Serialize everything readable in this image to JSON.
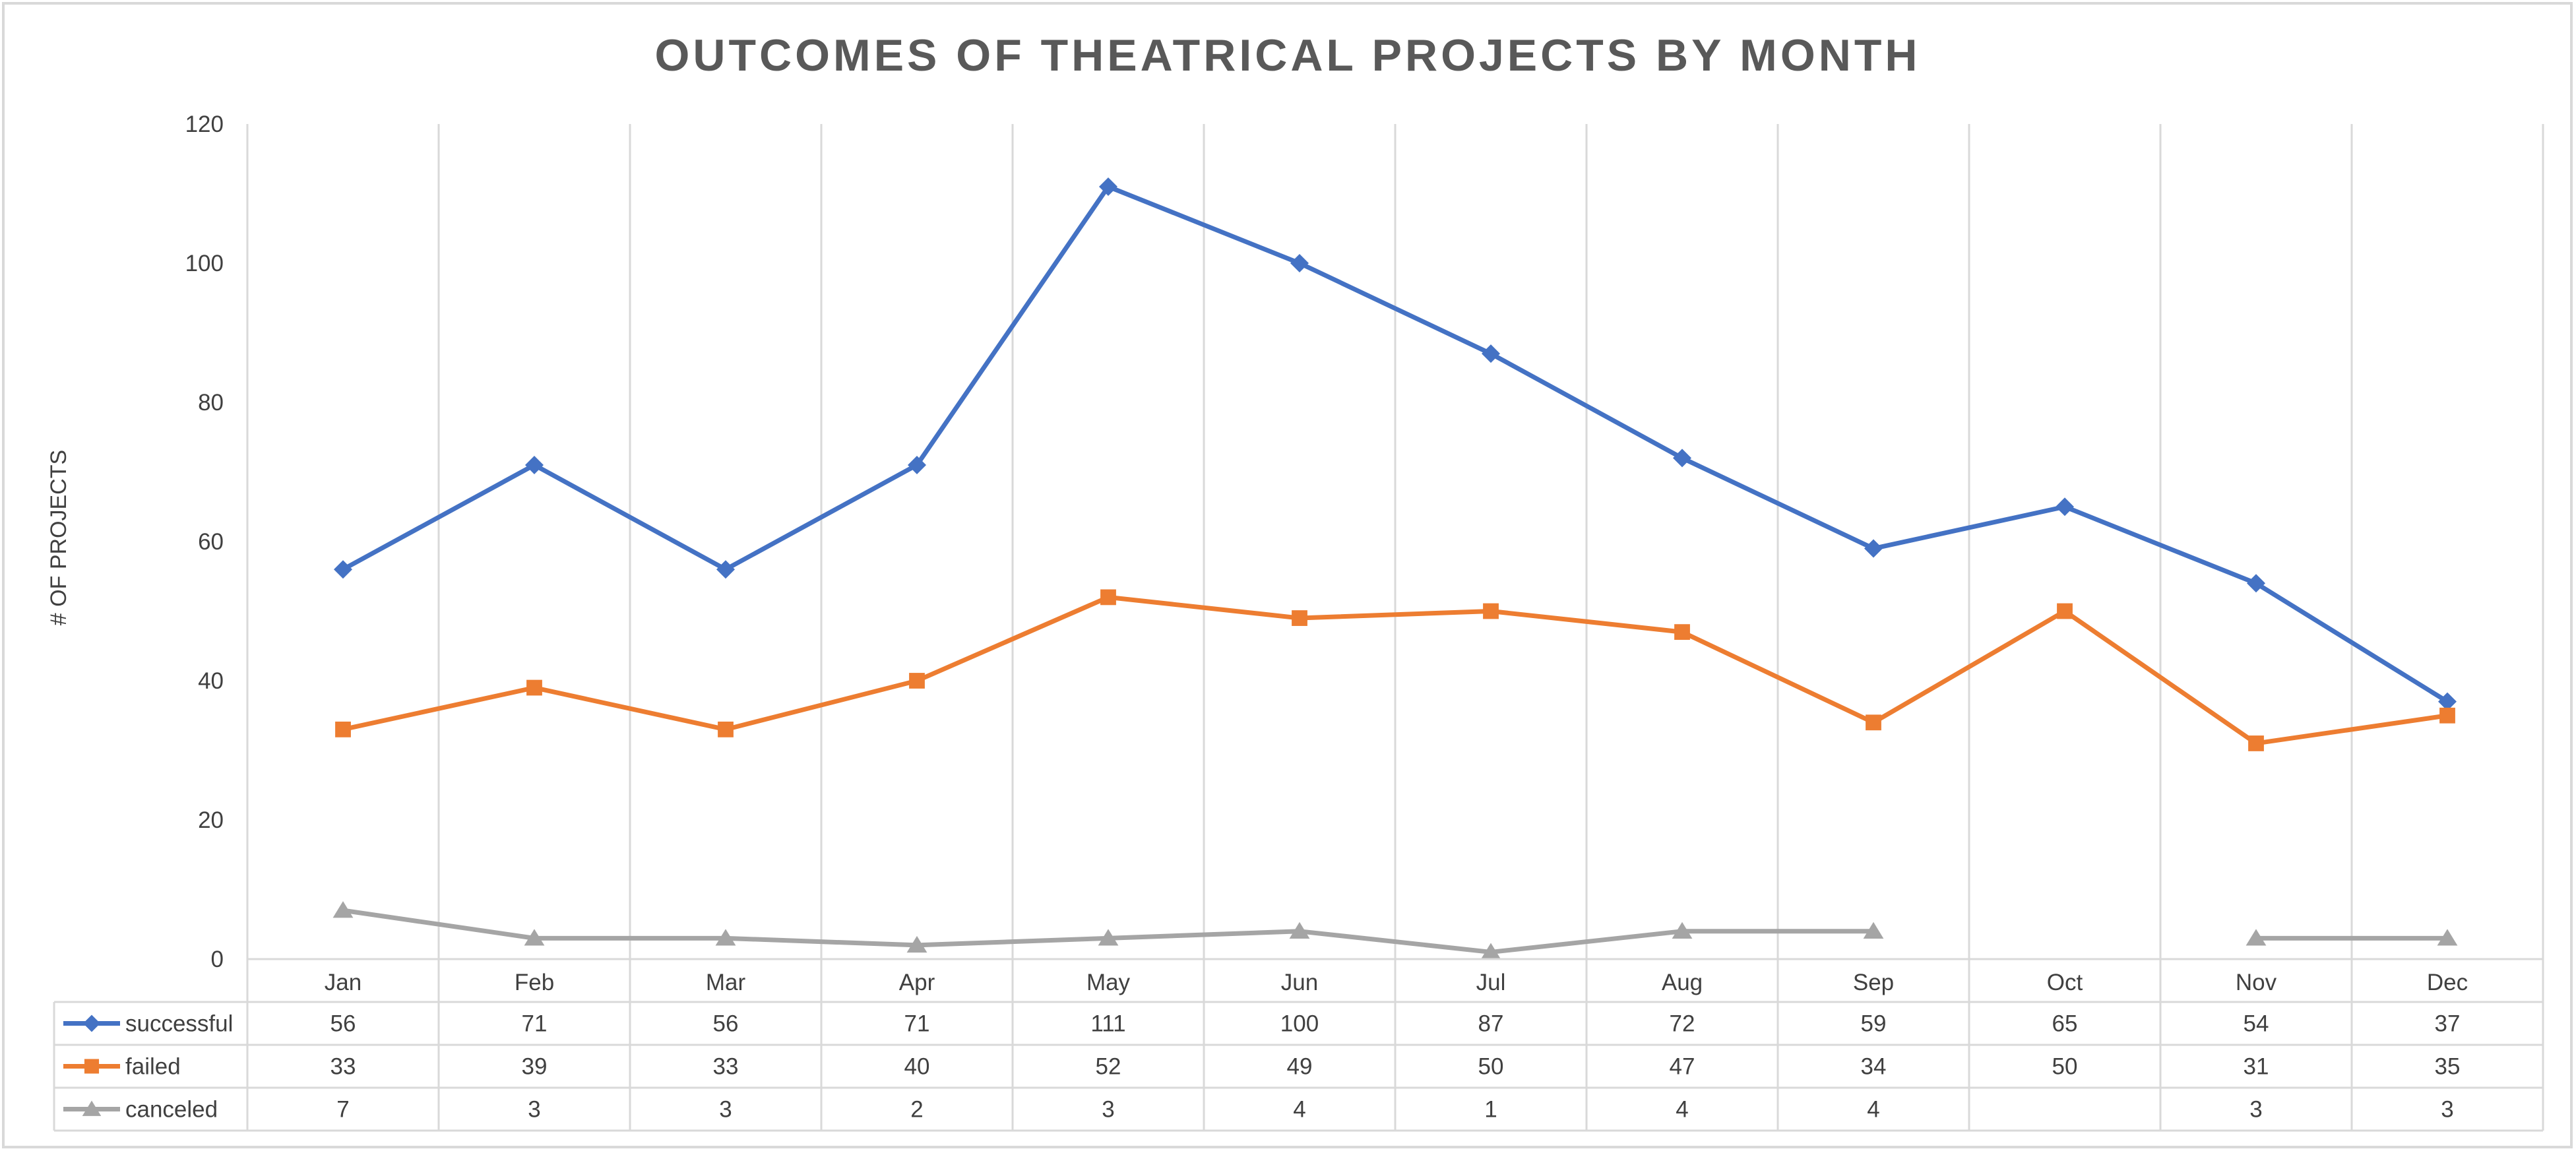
{
  "chart_data": {
    "type": "line",
    "title": "OUTCOMES OF THEATRICAL PROJECTS BY MONTH",
    "xlabel": "",
    "ylabel": "# OF PROJECTS",
    "ylim": [
      0,
      120
    ],
    "yticks": [
      0,
      20,
      40,
      60,
      80,
      100,
      120
    ],
    "categories": [
      "Jan",
      "Feb",
      "Mar",
      "Apr",
      "May",
      "Jun",
      "Jul",
      "Aug",
      "Sep",
      "Oct",
      "Nov",
      "Dec"
    ],
    "grid": "vertical",
    "legend": "data-table",
    "series": [
      {
        "name": "successful",
        "color": "#4472C4",
        "marker": "diamond",
        "values": [
          56,
          71,
          56,
          71,
          111,
          100,
          87,
          72,
          59,
          65,
          54,
          37
        ]
      },
      {
        "name": "failed",
        "color": "#ED7D31",
        "marker": "square",
        "values": [
          33,
          39,
          33,
          40,
          52,
          49,
          50,
          47,
          34,
          50,
          31,
          35
        ]
      },
      {
        "name": "canceled",
        "color": "#A5A5A5",
        "marker": "triangle",
        "values": [
          7,
          3,
          3,
          2,
          3,
          4,
          1,
          4,
          4,
          null,
          3,
          3
        ]
      }
    ]
  }
}
